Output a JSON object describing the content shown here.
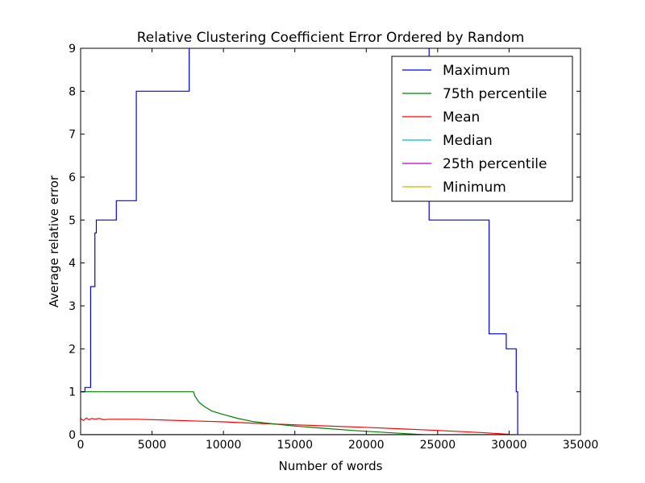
{
  "chart_data": {
    "type": "line",
    "title": "Relative Clustering Coefficient Error Ordered by Random",
    "xlabel": "Number of words",
    "ylabel": "Average relative error",
    "xlim": [
      0,
      35000
    ],
    "ylim": [
      0,
      9
    ],
    "xticks": [
      0,
      5000,
      10000,
      15000,
      20000,
      25000,
      30000,
      35000
    ],
    "yticks": [
      0,
      1,
      2,
      3,
      4,
      5,
      6,
      7,
      8,
      9
    ],
    "grid": false,
    "legend_position": "top-right",
    "series": [
      {
        "name": "Maximum",
        "color": "#0000ff",
        "step": true,
        "points": [
          [
            0,
            1.0
          ],
          [
            300,
            1.1
          ],
          [
            700,
            3.45
          ],
          [
            1000,
            4.7
          ],
          [
            1100,
            5.0
          ],
          [
            2500,
            5.45
          ],
          [
            3900,
            8.0
          ],
          [
            7600,
            9.5
          ],
          [
            24300,
            9.5
          ],
          [
            24400,
            5.0
          ],
          [
            28600,
            2.35
          ],
          [
            29800,
            2.0
          ],
          [
            30500,
            1.0
          ],
          [
            30600,
            0.0
          ]
        ]
      },
      {
        "name": "75th percentile",
        "color": "#008000",
        "step": false,
        "points": [
          [
            0,
            1.0
          ],
          [
            7900,
            1.0
          ],
          [
            8000,
            0.9
          ],
          [
            8300,
            0.75
          ],
          [
            8700,
            0.65
          ],
          [
            9200,
            0.55
          ],
          [
            10000,
            0.47
          ],
          [
            11000,
            0.38
          ],
          [
            12000,
            0.31
          ],
          [
            13000,
            0.27
          ],
          [
            15000,
            0.2
          ],
          [
            17000,
            0.15
          ],
          [
            19000,
            0.1
          ],
          [
            21000,
            0.06
          ],
          [
            23000,
            0.02
          ],
          [
            24000,
            0.0
          ]
        ]
      },
      {
        "name": "Mean",
        "color": "#ff0000",
        "step": false,
        "points": [
          [
            0,
            0.38
          ],
          [
            200,
            0.33
          ],
          [
            400,
            0.39
          ],
          [
            600,
            0.35
          ],
          [
            800,
            0.38
          ],
          [
            1000,
            0.36
          ],
          [
            1300,
            0.38
          ],
          [
            1600,
            0.35
          ],
          [
            2000,
            0.36
          ],
          [
            4000,
            0.36
          ],
          [
            6000,
            0.34
          ],
          [
            8000,
            0.32
          ],
          [
            10000,
            0.3
          ],
          [
            12000,
            0.27
          ],
          [
            15000,
            0.23
          ],
          [
            20000,
            0.17
          ],
          [
            25000,
            0.1
          ],
          [
            28000,
            0.05
          ],
          [
            30000,
            0.01
          ]
        ]
      },
      {
        "name": "Median",
        "color": "#00bfbf",
        "step": false,
        "points": [
          [
            0,
            0.0
          ],
          [
            30500,
            0.0
          ]
        ]
      },
      {
        "name": "25th percentile",
        "color": "#bf00bf",
        "step": false,
        "points": [
          [
            0,
            0.0
          ],
          [
            30500,
            0.0
          ]
        ]
      },
      {
        "name": "Minimum",
        "color": "#bfbf00",
        "step": false,
        "points": [
          [
            0,
            0.0
          ],
          [
            30500,
            0.0
          ]
        ]
      }
    ]
  }
}
